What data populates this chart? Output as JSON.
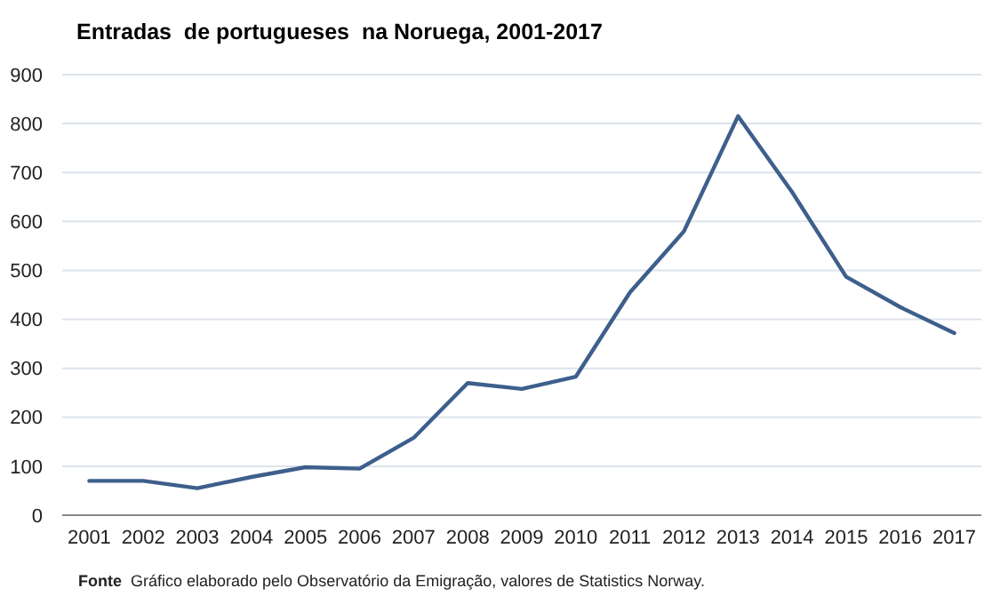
{
  "chart_data": {
    "type": "line",
    "title": "Entradas  de portugueses  na Noruega, 2001-2017",
    "categories": [
      "2001",
      "2002",
      "2003",
      "2004",
      "2005",
      "2006",
      "2007",
      "2008",
      "2009",
      "2010",
      "2011",
      "2012",
      "2013",
      "2014",
      "2015",
      "2016",
      "2017"
    ],
    "series": [
      {
        "color": "#3d5f8c",
        "values": [
          70,
          70,
          55,
          78,
          98,
          95,
          158,
          270,
          258,
          283,
          455,
          580,
          815,
          660,
          487,
          425,
          372
        ]
      }
    ],
    "ylim": [
      0,
      900
    ],
    "yticks": [
      0,
      100,
      200,
      300,
      400,
      500,
      600,
      700,
      800,
      900
    ],
    "grid": "y",
    "annotations": [
      "Fonte  Gráfico elaborado pelo Observatório da Emigração, valores de Statistics Norway."
    ]
  }
}
